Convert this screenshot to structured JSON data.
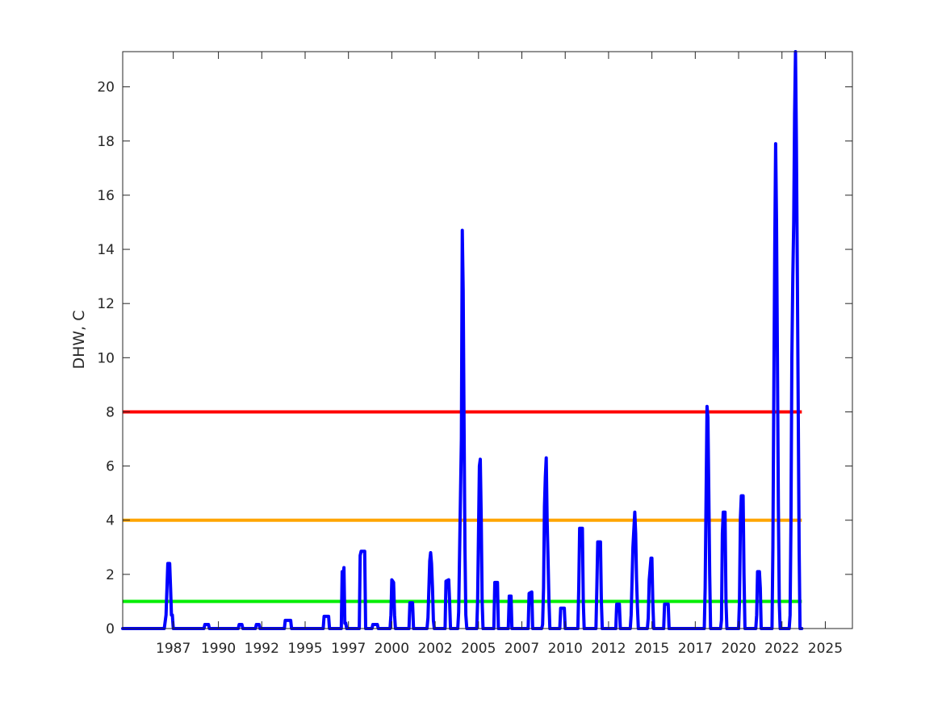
{
  "chart_data": {
    "type": "line",
    "title": "",
    "xlabel": "",
    "ylabel": "DHW, C",
    "xlim": [
      1985.0,
      2025.4
    ],
    "ylim": [
      0,
      21.3
    ],
    "grid": false,
    "legend": "none",
    "x_ticks": [
      {
        "value": 1987.8,
        "label": "1987"
      },
      {
        "value": 1990.3,
        "label": "1990"
      },
      {
        "value": 1992.7,
        "label": "1992"
      },
      {
        "value": 1995.1,
        "label": "1995"
      },
      {
        "value": 1997.5,
        "label": "1997"
      },
      {
        "value": 1999.9,
        "label": "2000"
      },
      {
        "value": 2002.3,
        "label": "2002"
      },
      {
        "value": 2004.7,
        "label": "2005"
      },
      {
        "value": 2007.1,
        "label": "2007"
      },
      {
        "value": 2009.5,
        "label": "2010"
      },
      {
        "value": 2011.9,
        "label": "2012"
      },
      {
        "value": 2014.3,
        "label": "2015"
      },
      {
        "value": 2016.7,
        "label": "2017"
      },
      {
        "value": 2019.1,
        "label": "2020"
      },
      {
        "value": 2021.5,
        "label": "2022"
      },
      {
        "value": 2023.9,
        "label": "2025"
      }
    ],
    "y_ticks": [
      {
        "value": 0,
        "label": "0"
      },
      {
        "value": 2,
        "label": "2"
      },
      {
        "value": 4,
        "label": "4"
      },
      {
        "value": 6,
        "label": "6"
      },
      {
        "value": 8,
        "label": "8"
      },
      {
        "value": 10,
        "label": "10"
      },
      {
        "value": 12,
        "label": "12"
      },
      {
        "value": 14,
        "label": "14"
      },
      {
        "value": 16,
        "label": "16"
      },
      {
        "value": 18,
        "label": "18"
      },
      {
        "value": 20,
        "label": "20"
      }
    ],
    "thresholds": [
      {
        "value": 8,
        "color": "#ff0000"
      },
      {
        "value": 4,
        "color": "#ffa500"
      },
      {
        "value": 1,
        "color": "#00ee00"
      }
    ],
    "series": [
      {
        "color": "#0000ff",
        "points": [
          [
            1985.0,
            0
          ],
          [
            1987.3,
            0
          ],
          [
            1987.4,
            0.5
          ],
          [
            1987.5,
            2.4
          ],
          [
            1987.6,
            2.4
          ],
          [
            1987.65,
            1.5
          ],
          [
            1987.7,
            0.5
          ],
          [
            1987.75,
            0.5
          ],
          [
            1987.8,
            0
          ],
          [
            1989.5,
            0
          ],
          [
            1989.55,
            0.15
          ],
          [
            1989.75,
            0.15
          ],
          [
            1989.8,
            0
          ],
          [
            1991.4,
            0
          ],
          [
            1991.45,
            0.15
          ],
          [
            1991.6,
            0.15
          ],
          [
            1991.65,
            0
          ],
          [
            1992.35,
            0
          ],
          [
            1992.4,
            0.15
          ],
          [
            1992.55,
            0.15
          ],
          [
            1992.6,
            0
          ],
          [
            1993.95,
            0
          ],
          [
            1994.0,
            0.3
          ],
          [
            1994.3,
            0.3
          ],
          [
            1994.35,
            0
          ],
          [
            1996.1,
            0
          ],
          [
            1996.15,
            0.45
          ],
          [
            1996.4,
            0.45
          ],
          [
            1996.45,
            0
          ],
          [
            1997.1,
            0
          ],
          [
            1997.15,
            2.1
          ],
          [
            1997.2,
            1.8
          ],
          [
            1997.25,
            2.25
          ],
          [
            1997.3,
            0.2
          ],
          [
            1997.35,
            0.2
          ],
          [
            1997.4,
            0
          ],
          [
            1998.1,
            0
          ],
          [
            1998.15,
            2.7
          ],
          [
            1998.2,
            2.85
          ],
          [
            1998.4,
            2.85
          ],
          [
            1998.45,
            0
          ],
          [
            1998.8,
            0
          ],
          [
            1998.85,
            0.15
          ],
          [
            1999.1,
            0.15
          ],
          [
            1999.15,
            0
          ],
          [
            1999.8,
            0
          ],
          [
            1999.85,
            0.5
          ],
          [
            1999.9,
            1.8
          ],
          [
            2000.0,
            1.7
          ],
          [
            2000.05,
            0.5
          ],
          [
            2000.1,
            0
          ],
          [
            2000.85,
            0
          ],
          [
            2000.9,
            0.95
          ],
          [
            2001.05,
            0.95
          ],
          [
            2001.1,
            0
          ],
          [
            2001.85,
            0
          ],
          [
            2001.9,
            0.4
          ],
          [
            2002.0,
            2.5
          ],
          [
            2002.05,
            2.8
          ],
          [
            2002.1,
            2.4
          ],
          [
            2002.15,
            1.5
          ],
          [
            2002.2,
            0.3
          ],
          [
            2002.25,
            0
          ],
          [
            2002.85,
            0
          ],
          [
            2002.9,
            1.75
          ],
          [
            2003.05,
            1.8
          ],
          [
            2003.1,
            1.0
          ],
          [
            2003.15,
            0
          ],
          [
            2003.55,
            0
          ],
          [
            2003.6,
            0.6
          ],
          [
            2003.75,
            7.0
          ],
          [
            2003.8,
            14.7
          ],
          [
            2003.85,
            12.5
          ],
          [
            2003.9,
            7.5
          ],
          [
            2003.95,
            3.0
          ],
          [
            2004.0,
            0.5
          ],
          [
            2004.05,
            0
          ],
          [
            2004.6,
            0
          ],
          [
            2004.65,
            1.0
          ],
          [
            2004.75,
            6.0
          ],
          [
            2004.8,
            6.25
          ],
          [
            2004.85,
            4.0
          ],
          [
            2004.9,
            1.0
          ],
          [
            2004.95,
            0
          ],
          [
            2005.55,
            0
          ],
          [
            2005.6,
            1.7
          ],
          [
            2005.75,
            1.7
          ],
          [
            2005.8,
            0
          ],
          [
            2006.35,
            0
          ],
          [
            2006.4,
            1.2
          ],
          [
            2006.5,
            1.2
          ],
          [
            2006.55,
            0
          ],
          [
            2007.45,
            0
          ],
          [
            2007.5,
            1.3
          ],
          [
            2007.65,
            1.35
          ],
          [
            2007.7,
            0
          ],
          [
            2008.2,
            0
          ],
          [
            2008.25,
            0.15
          ],
          [
            2008.3,
            1.5
          ],
          [
            2008.35,
            4.5
          ],
          [
            2008.4,
            5.6
          ],
          [
            2008.45,
            6.3
          ],
          [
            2008.5,
            4.0
          ],
          [
            2008.55,
            2.5
          ],
          [
            2008.6,
            1.0
          ],
          [
            2008.65,
            0
          ],
          [
            2009.2,
            0
          ],
          [
            2009.25,
            0.75
          ],
          [
            2009.45,
            0.75
          ],
          [
            2009.5,
            0
          ],
          [
            2010.2,
            0
          ],
          [
            2010.25,
            1.5
          ],
          [
            2010.3,
            3.7
          ],
          [
            2010.45,
            3.7
          ],
          [
            2010.5,
            1.0
          ],
          [
            2010.55,
            0
          ],
          [
            2011.2,
            0
          ],
          [
            2011.25,
            1.5
          ],
          [
            2011.3,
            3.2
          ],
          [
            2011.45,
            3.2
          ],
          [
            2011.5,
            1.0
          ],
          [
            2011.55,
            0
          ],
          [
            2012.3,
            0
          ],
          [
            2012.35,
            0.9
          ],
          [
            2012.5,
            0.9
          ],
          [
            2012.55,
            0
          ],
          [
            2013.1,
            0
          ],
          [
            2013.15,
            0.5
          ],
          [
            2013.25,
            3.0
          ],
          [
            2013.35,
            4.3
          ],
          [
            2013.4,
            3.5
          ],
          [
            2013.45,
            1.8
          ],
          [
            2013.5,
            0.8
          ],
          [
            2013.55,
            0
          ],
          [
            2014.05,
            0
          ],
          [
            2014.1,
            0.4
          ],
          [
            2014.15,
            1.8
          ],
          [
            2014.2,
            2.2
          ],
          [
            2014.25,
            2.6
          ],
          [
            2014.3,
            2.6
          ],
          [
            2014.35,
            1.0
          ],
          [
            2014.4,
            0
          ],
          [
            2014.95,
            0
          ],
          [
            2015.0,
            0.9
          ],
          [
            2015.2,
            0.9
          ],
          [
            2015.25,
            0
          ],
          [
            2017.2,
            0
          ],
          [
            2017.25,
            1.5
          ],
          [
            2017.35,
            8.2
          ],
          [
            2017.4,
            7.8
          ],
          [
            2017.45,
            5.0
          ],
          [
            2017.5,
            2.0
          ],
          [
            2017.55,
            0
          ],
          [
            2018.1,
            0
          ],
          [
            2018.15,
            0.3
          ],
          [
            2018.2,
            3.5
          ],
          [
            2018.25,
            4.3
          ],
          [
            2018.35,
            4.3
          ],
          [
            2018.4,
            1.0
          ],
          [
            2018.45,
            0
          ],
          [
            2019.1,
            0
          ],
          [
            2019.15,
            1.0
          ],
          [
            2019.2,
            4.1
          ],
          [
            2019.25,
            4.9
          ],
          [
            2019.35,
            4.9
          ],
          [
            2019.4,
            2.0
          ],
          [
            2019.45,
            0
          ],
          [
            2020.05,
            0
          ],
          [
            2020.1,
            0.5
          ],
          [
            2020.15,
            2.1
          ],
          [
            2020.25,
            2.1
          ],
          [
            2020.3,
            1.5
          ],
          [
            2020.35,
            0
          ],
          [
            2020.95,
            0
          ],
          [
            2021.0,
            3.0
          ],
          [
            2021.05,
            9.0
          ],
          [
            2021.1,
            14.0
          ],
          [
            2021.15,
            17.9
          ],
          [
            2021.2,
            15.0
          ],
          [
            2021.25,
            10.0
          ],
          [
            2021.3,
            4.5
          ],
          [
            2021.35,
            1.0
          ],
          [
            2021.4,
            0
          ],
          [
            2021.9,
            0
          ],
          [
            2021.95,
            0.5
          ],
          [
            2022.0,
            4.0
          ],
          [
            2022.05,
            10.0
          ],
          [
            2022.1,
            13.0
          ],
          [
            2022.15,
            15.0
          ],
          [
            2022.2,
            19.0
          ],
          [
            2022.25,
            21.3
          ],
          [
            2022.3,
            18.0
          ],
          [
            2022.35,
            13.0
          ],
          [
            2022.4,
            8.0
          ],
          [
            2022.45,
            3.0
          ],
          [
            2022.5,
            0
          ],
          [
            2022.6,
            0
          ]
        ]
      }
    ]
  }
}
